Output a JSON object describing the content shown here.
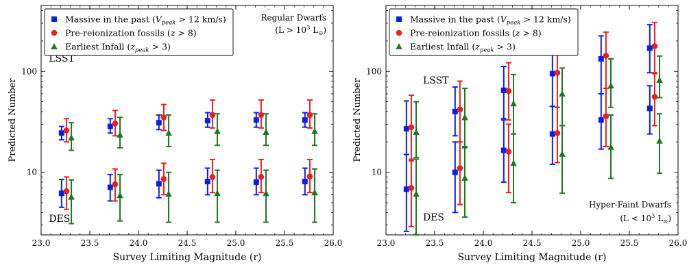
{
  "colors": {
    "massive": "#0a1ee6",
    "fossils": "#e62020",
    "infall": "#1e781e"
  },
  "chart_data": [
    {
      "type": "scatter",
      "panel": "left",
      "title": "",
      "xlabel": "Survey Limiting Magnitude (r)",
      "ylabel": "Predicted Number",
      "xlim": [
        23.0,
        26.0
      ],
      "ylim": [
        2.4,
        450
      ],
      "yscale": "log",
      "xticks": [
        "23.0",
        "23.5",
        "24.0",
        "24.5",
        "25.0",
        "25.5",
        "26.0"
      ],
      "yticks": [
        {
          "value": 10,
          "label": "10"
        },
        {
          "value": 100,
          "label": "100"
        }
      ],
      "legend": {
        "placement": "top-left",
        "entries": [
          {
            "key": "massive",
            "marker": "square",
            "prefix": "Massive in the past (",
            "var": "V",
            "sub": "peak",
            "suffix": " > 12 km/s)"
          },
          {
            "key": "fossils",
            "marker": "circle",
            "prefix": "Pre-reionization fossils (",
            "var": "z",
            "sub": "",
            "suffix": " > 8)"
          },
          {
            "key": "infall",
            "marker": "triangle",
            "prefix": "Earliest Infall (",
            "var": "z",
            "sub": "peak",
            "suffix": " > 3)"
          }
        ]
      },
      "corner_text": {
        "placement": "top-right",
        "line1": "Regular Dwarfs",
        "line2_prefix": "(L > 10",
        "line2_sup": "3",
        "line2_mid": " L",
        "line2_sub": "⊙",
        "line2_suffix": ")"
      },
      "labels": [
        {
          "text": "LSST",
          "x": 23.08,
          "y": 135
        },
        {
          "text": "DES",
          "x": 23.08,
          "y": 3.5
        }
      ],
      "series": [
        {
          "key": "massive",
          "marker": "square",
          "dx": -0.04,
          "points": [
            {
              "x": 23.25,
              "y": 24.5,
              "lo": 21,
              "hi": 28.5
            },
            {
              "x": 23.75,
              "y": 28.5,
              "lo": 24.5,
              "hi": 34
            },
            {
              "x": 24.25,
              "y": 31,
              "lo": 26.5,
              "hi": 37
            },
            {
              "x": 24.75,
              "y": 32.5,
              "lo": 28,
              "hi": 39
            },
            {
              "x": 25.25,
              "y": 33,
              "lo": 28,
              "hi": 39
            },
            {
              "x": 25.75,
              "y": 33,
              "lo": 28,
              "hi": 39
            },
            {
              "x": 23.25,
              "y": 6.2,
              "lo": 4.5,
              "hi": 8.5
            },
            {
              "x": 23.75,
              "y": 7.1,
              "lo": 5.2,
              "hi": 9.5
            },
            {
              "x": 24.25,
              "y": 7.7,
              "lo": 5.6,
              "hi": 10.5
            },
            {
              "x": 24.75,
              "y": 8.1,
              "lo": 6,
              "hi": 11
            },
            {
              "x": 25.25,
              "y": 8,
              "lo": 6,
              "hi": 11
            },
            {
              "x": 25.75,
              "y": 8.1,
              "lo": 6,
              "hi": 11
            }
          ]
        },
        {
          "key": "fossils",
          "marker": "circle",
          "dx": 0.01,
          "points": [
            {
              "x": 23.25,
              "y": 26,
              "lo": 20,
              "hi": 34
            },
            {
              "x": 23.75,
              "y": 30.5,
              "lo": 23,
              "hi": 41
            },
            {
              "x": 24.25,
              "y": 35,
              "lo": 26,
              "hi": 47
            },
            {
              "x": 24.75,
              "y": 37,
              "lo": 27.5,
              "hi": 52
            },
            {
              "x": 25.25,
              "y": 37,
              "lo": 27.5,
              "hi": 52
            },
            {
              "x": 25.75,
              "y": 37,
              "lo": 27.5,
              "hi": 52
            },
            {
              "x": 23.25,
              "y": 6.5,
              "lo": 4.3,
              "hi": 9
            },
            {
              "x": 23.75,
              "y": 7.6,
              "lo": 5.2,
              "hi": 10.8
            },
            {
              "x": 24.25,
              "y": 8.6,
              "lo": 6,
              "hi": 12.3
            },
            {
              "x": 24.75,
              "y": 9,
              "lo": 6.3,
              "hi": 13.4
            },
            {
              "x": 25.25,
              "y": 9,
              "lo": 6.3,
              "hi": 13.4
            },
            {
              "x": 25.75,
              "y": 9.1,
              "lo": 6.3,
              "hi": 13.4
            }
          ]
        },
        {
          "key": "infall",
          "marker": "triangle",
          "dx": 0.06,
          "points": [
            {
              "x": 23.25,
              "y": 22,
              "lo": 16.5,
              "hi": 31
            },
            {
              "x": 23.75,
              "y": 23.5,
              "lo": 17.5,
              "hi": 35
            },
            {
              "x": 24.25,
              "y": 24.5,
              "lo": 18,
              "hi": 37
            },
            {
              "x": 24.75,
              "y": 25.5,
              "lo": 18.5,
              "hi": 38
            },
            {
              "x": 25.25,
              "y": 25,
              "lo": 18.5,
              "hi": 38
            },
            {
              "x": 25.75,
              "y": 25.5,
              "lo": 18.5,
              "hi": 38
            },
            {
              "x": 23.25,
              "y": 5.7,
              "lo": 3.1,
              "hi": 8.4
            },
            {
              "x": 23.75,
              "y": 5.9,
              "lo": 3.3,
              "hi": 9.5
            },
            {
              "x": 24.25,
              "y": 6.1,
              "lo": 3.2,
              "hi": 10
            },
            {
              "x": 24.75,
              "y": 6.2,
              "lo": 3.2,
              "hi": 10.5
            },
            {
              "x": 25.25,
              "y": 6.2,
              "lo": 3.2,
              "hi": 10.5
            },
            {
              "x": 25.75,
              "y": 6.3,
              "lo": 3.2,
              "hi": 10.8
            }
          ]
        }
      ]
    },
    {
      "type": "scatter",
      "panel": "right",
      "title": "",
      "xlabel": "Survey Limiting Magnitude (r)",
      "ylabel": "Predicted Number",
      "xlim": [
        23.0,
        26.0
      ],
      "ylim": [
        2.4,
        450
      ],
      "yscale": "log",
      "xticks": [
        "23.0",
        "23.5",
        "24.0",
        "24.5",
        "25.0",
        "25.5",
        "26.0"
      ],
      "yticks": [
        {
          "value": 10,
          "label": "10"
        },
        {
          "value": 100,
          "label": "100"
        }
      ],
      "legend": {
        "placement": "top-left",
        "entries": [
          {
            "key": "massive",
            "marker": "square",
            "prefix": "Massive in the past (",
            "var": "V",
            "sub": "peak",
            "suffix": " > 12 km/s)"
          },
          {
            "key": "fossils",
            "marker": "circle",
            "prefix": "Pre-reionization fossils (",
            "var": "z",
            "sub": "",
            "suffix": " > 8)"
          },
          {
            "key": "infall",
            "marker": "triangle",
            "prefix": "Earliest Infall (",
            "var": "z",
            "sub": "peak",
            "suffix": " > 3)"
          }
        ]
      },
      "corner_text": {
        "placement": "bottom-right",
        "line1": "Hyper-Faint Dwarfs",
        "line2_prefix": "(L < 10",
        "line2_sup": "3",
        "line2_mid": " L",
        "line2_sub": "⊙",
        "line2_suffix": ")"
      },
      "labels": [
        {
          "text": "LSST",
          "x": 23.38,
          "y": 82
        },
        {
          "text": "DES",
          "x": 23.38,
          "y": 3.6
        }
      ],
      "series": [
        {
          "key": "massive",
          "marker": "square",
          "dx": -0.04,
          "points": [
            {
              "x": 23.25,
              "y": 27,
              "lo": 15,
              "hi": 51
            },
            {
              "x": 23.75,
              "y": 40,
              "lo": 23,
              "hi": 70
            },
            {
              "x": 24.25,
              "y": 65,
              "lo": 34,
              "hi": 112
            },
            {
              "x": 24.75,
              "y": 95,
              "lo": 45,
              "hi": 165
            },
            {
              "x": 25.25,
              "y": 133,
              "lo": 60,
              "hi": 225
            },
            {
              "x": 25.75,
              "y": 170,
              "lo": 97,
              "hi": 290
            },
            {
              "x": 23.25,
              "y": 6.8,
              "lo": 2.6,
              "hi": 15
            },
            {
              "x": 23.75,
              "y": 10,
              "lo": 4,
              "hi": 20
            },
            {
              "x": 24.25,
              "y": 16.5,
              "lo": 8,
              "hi": 33
            },
            {
              "x": 24.75,
              "y": 24,
              "lo": 12,
              "hi": 45
            },
            {
              "x": 25.25,
              "y": 33,
              "lo": 17,
              "hi": 60
            },
            {
              "x": 25.75,
              "y": 43,
              "lo": 24,
              "hi": 72
            }
          ]
        },
        {
          "key": "fossils",
          "marker": "circle",
          "dx": 0.01,
          "points": [
            {
              "x": 23.25,
              "y": 28,
              "lo": 13,
              "hi": 58
            },
            {
              "x": 23.75,
              "y": 42,
              "lo": 20,
              "hi": 80
            },
            {
              "x": 24.25,
              "y": 64,
              "lo": 33,
              "hi": 122
            },
            {
              "x": 24.75,
              "y": 97,
              "lo": 44,
              "hi": 165
            },
            {
              "x": 25.25,
              "y": 143,
              "lo": 68,
              "hi": 245
            },
            {
              "x": 25.75,
              "y": 178,
              "lo": 95,
              "hi": 305
            },
            {
              "x": 23.25,
              "y": 7,
              "lo": 2.9,
              "hi": 13.5
            },
            {
              "x": 23.75,
              "y": 11,
              "lo": 4.8,
              "hi": 20
            },
            {
              "x": 24.25,
              "y": 16,
              "lo": 6.3,
              "hi": 30
            },
            {
              "x": 24.75,
              "y": 24.5,
              "lo": 12.5,
              "hi": 44
            },
            {
              "x": 25.25,
              "y": 36,
              "lo": 18,
              "hi": 68
            },
            {
              "x": 25.75,
              "y": 56,
              "lo": 29,
              "hi": 97
            }
          ]
        },
        {
          "key": "infall",
          "marker": "triangle",
          "dx": 0.06,
          "points": [
            {
              "x": 23.25,
              "y": 25,
              "lo": 14,
              "hi": 50
            },
            {
              "x": 23.75,
              "y": 35,
              "lo": 18,
              "hi": 68
            },
            {
              "x": 24.25,
              "y": 48,
              "lo": 24,
              "hi": 93
            },
            {
              "x": 24.75,
              "y": 60,
              "lo": 29,
              "hi": 108
            },
            {
              "x": 25.25,
              "y": 72,
              "lo": 44,
              "hi": 133
            },
            {
              "x": 25.75,
              "y": 82,
              "lo": 55,
              "hi": 142
            },
            {
              "x": 23.25,
              "y": 6.1,
              "lo": 2.4,
              "hi": 13.5
            },
            {
              "x": 23.75,
              "y": 8.8,
              "lo": 3.6,
              "hi": 17.5
            },
            {
              "x": 24.25,
              "y": 12.3,
              "lo": 5,
              "hi": 24
            },
            {
              "x": 24.75,
              "y": 15.2,
              "lo": 6.2,
              "hi": 29
            },
            {
              "x": 25.25,
              "y": 17.8,
              "lo": 8.7,
              "hi": 37
            },
            {
              "x": 25.75,
              "y": 20.5,
              "lo": 9.8,
              "hi": 38
            }
          ]
        }
      ]
    }
  ]
}
